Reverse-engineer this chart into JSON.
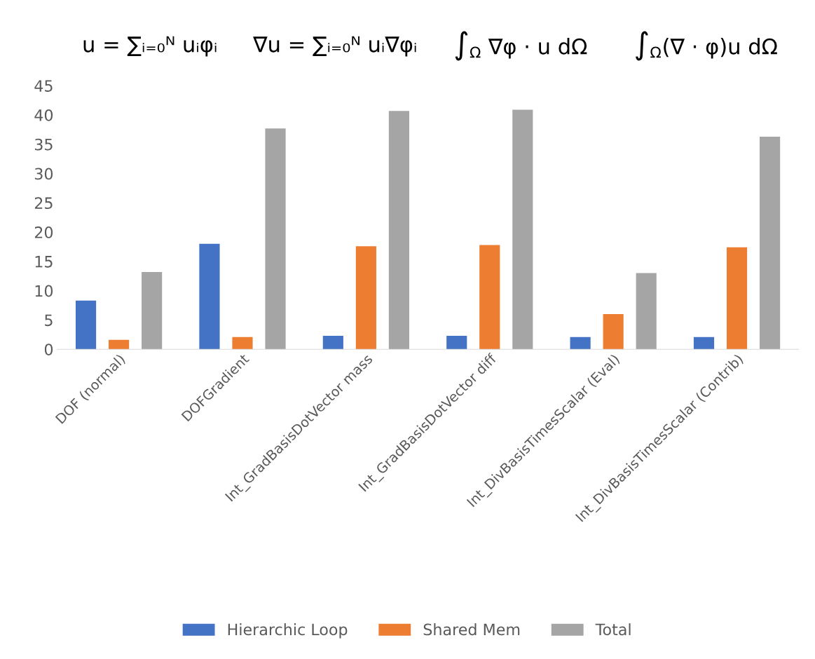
{
  "chart_data": {
    "type": "bar",
    "categories": [
      "DOF (normal)",
      "DOFGradient",
      "Int_GradBasisDotVector mass",
      "Int_GradBasisDotVector diff",
      "Int_DivBasisTimesScalar (Eval)",
      "Int_DivBasisTimesScalar (Contrib)"
    ],
    "series": [
      {
        "name": "Hierarchic Loop",
        "color": "#4472c4",
        "values": [
          8.3,
          18.0,
          2.3,
          2.3,
          2.1,
          2.1
        ]
      },
      {
        "name": "Shared Mem",
        "color": "#ed7d31",
        "values": [
          1.6,
          2.1,
          17.6,
          17.8,
          6.0,
          17.4
        ]
      },
      {
        "name": "Total",
        "color": "#a5a5a5",
        "values": [
          13.2,
          37.7,
          40.7,
          40.9,
          13.0,
          36.3
        ]
      }
    ],
    "ylim": [
      0,
      45
    ],
    "yticks": [
      0,
      5,
      10,
      15,
      20,
      25,
      30,
      35,
      40,
      45
    ],
    "grid": false,
    "legend": "bottom",
    "annotations": [
      "u = ∑ᵢ₌₀ᴺ uᵢφᵢ",
      "∇u = ∑ᵢ₌₀ᴺ uᵢ∇φᵢ",
      "∫$_{Ω}$ ∇φ · u dΩ",
      "∫$_{Ω}$(∇ · φ)u dΩ"
    ]
  }
}
